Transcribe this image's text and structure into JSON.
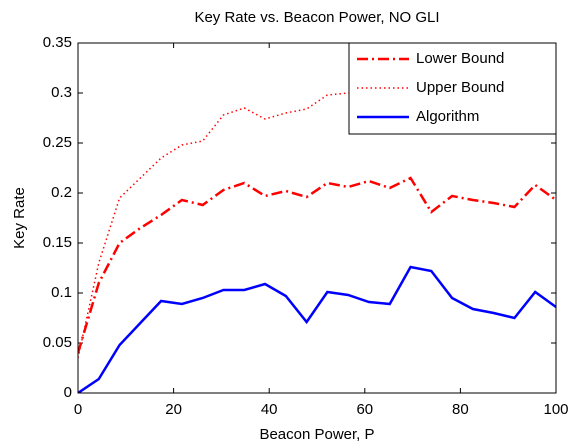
{
  "chart_data": {
    "type": "line",
    "title": "Key Rate vs. Beacon Power, NO GLI",
    "xlabel": "Beacon Power, P",
    "ylabel": "Key Rate",
    "x": [
      0,
      4.35,
      8.7,
      13.04,
      17.39,
      21.74,
      26.09,
      30.43,
      34.78,
      39.13,
      43.48,
      47.83,
      52.17,
      56.52,
      60.87,
      65.22,
      69.57,
      73.91,
      78.26,
      82.61,
      86.96,
      91.3,
      95.65,
      100
    ],
    "series": [
      {
        "name": "Lower Bound",
        "color": "#ff0000",
        "style": "dash-dot",
        "values": [
          0.04,
          0.11,
          0.15,
          0.165,
          0.178,
          0.193,
          0.188,
          0.203,
          0.21,
          0.197,
          0.202,
          0.196,
          0.21,
          0.206,
          0.212,
          0.205,
          0.215,
          0.181,
          0.197,
          0.193,
          0.19,
          0.186,
          0.208,
          0.193
        ]
      },
      {
        "name": "Upper Bound",
        "color": "#ff0000",
        "style": "dotted",
        "values": [
          0.035,
          0.13,
          0.195,
          0.215,
          0.235,
          0.248,
          0.252,
          0.278,
          0.285,
          0.274,
          0.28,
          0.284,
          0.298,
          0.3,
          0.3,
          0.305,
          0.31,
          0.3,
          0.31,
          0.305,
          0.31,
          0.315,
          0.31,
          0.305
        ]
      },
      {
        "name": "Algorithm",
        "color": "#0000ff",
        "style": "solid",
        "values": [
          0,
          0.014,
          0.048,
          0.07,
          0.092,
          0.089,
          0.095,
          0.103,
          0.103,
          0.109,
          0.097,
          0.071,
          0.101,
          0.098,
          0.091,
          0.089,
          0.126,
          0.122,
          0.095,
          0.084,
          0.08,
          0.075,
          0.101,
          0.086
        ]
      }
    ],
    "xlim": [
      0,
      100
    ],
    "xticks": [
      0,
      20,
      40,
      60,
      80,
      100
    ],
    "ylim": [
      0,
      0.35
    ],
    "yticks": [
      0,
      0.05,
      0.1,
      0.15,
      0.2,
      0.25,
      0.3,
      0.35
    ],
    "legend": "upper right",
    "grid": false
  }
}
